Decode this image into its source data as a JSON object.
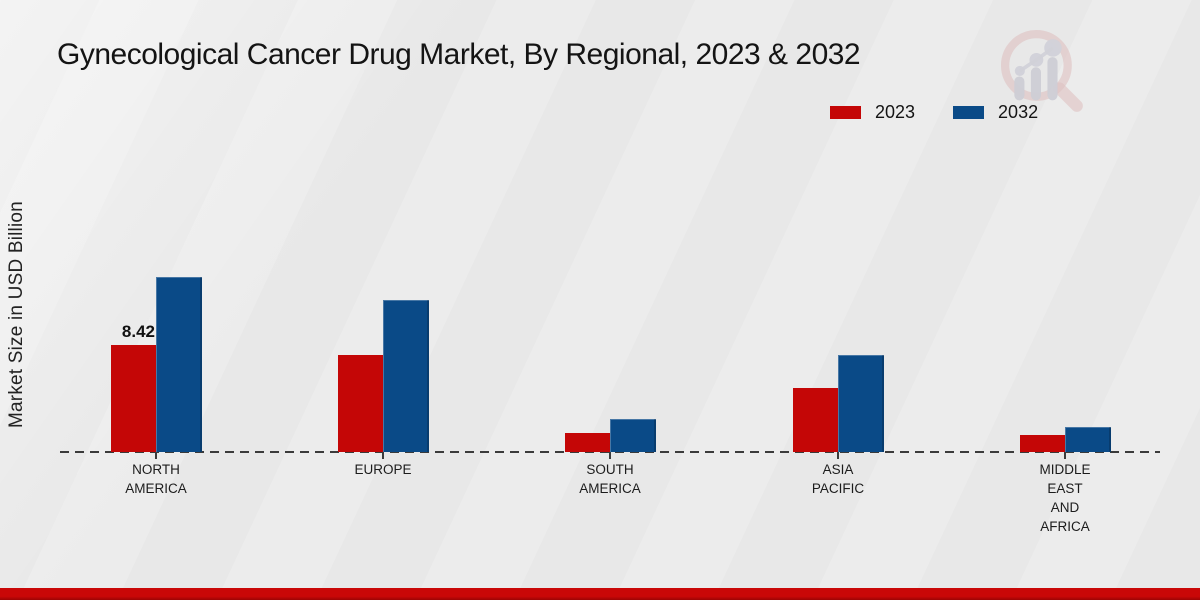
{
  "title": "Gynecological Cancer Drug Market, By Regional, 2023 & 2032",
  "y_axis_label": "Market Size in USD Billion",
  "legend": [
    {
      "label": "2023",
      "color": "#c40606"
    },
    {
      "label": "2032",
      "color": "#0a4a87"
    }
  ],
  "colors": {
    "series_2023": "#c40606",
    "series_2032": "#0a4a87",
    "footer_stripe_top": "#c90707",
    "footer_stripe_bottom": "#9c0404",
    "baseline": "#3b3b3b",
    "background": "#e9e9e9"
  },
  "chart_data": {
    "type": "bar",
    "title": "Gynecological Cancer Drug Market, By Regional, 2023 & 2032",
    "ylabel": "Market Size in USD Billion",
    "categories": [
      "NORTH AMERICA",
      "EUROPE",
      "SOUTH AMERICA",
      "ASIA PACIFIC",
      "MIDDLE EAST AND AFRICA"
    ],
    "category_label_lines": [
      [
        "NORTH",
        "AMERICA"
      ],
      [
        "EUROPE"
      ],
      [
        "SOUTH",
        "AMERICA"
      ],
      [
        "ASIA",
        "PACIFIC"
      ],
      [
        "MIDDLE",
        "EAST",
        "AND",
        "AFRICA"
      ]
    ],
    "series": [
      {
        "name": "2023",
        "color": "#c40606",
        "values": [
          8.42,
          7.6,
          1.5,
          5.0,
          1.3
        ]
      },
      {
        "name": "2032",
        "color": "#0a4a87",
        "values": [
          13.8,
          12.0,
          2.6,
          7.6,
          2.0
        ]
      }
    ],
    "data_labels": [
      {
        "series": "2023",
        "category": "NORTH AMERICA",
        "text": "8.42"
      }
    ],
    "units": "USD Billion",
    "axis": "only dashed zero baseline, no gridlines, no y ticks",
    "legend_position": "top-right"
  }
}
